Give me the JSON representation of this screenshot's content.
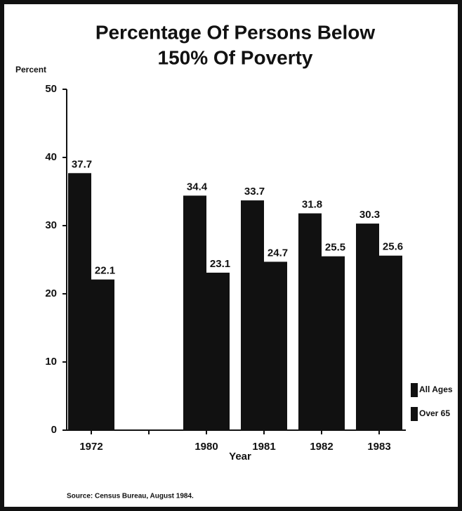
{
  "chart_data": {
    "type": "bar",
    "title": [
      "Percentage Of Persons Below",
      "150% Of Poverty"
    ],
    "y_label": "Percent",
    "x_label": "Year",
    "source": "Source: Census Bureau, August 1984.",
    "categories": [
      "1972",
      null,
      "1980",
      "1981",
      "1982",
      "1983"
    ],
    "series": [
      {
        "name": "All Ages",
        "color": "#111111",
        "values": [
          37.7,
          null,
          34.4,
          33.7,
          31.8,
          30.3
        ]
      },
      {
        "name": "Over 65",
        "color": "#111111",
        "values": [
          22.1,
          null,
          23.1,
          24.7,
          25.5,
          25.6
        ]
      }
    ],
    "ylim": [
      0,
      50
    ],
    "yticks": [
      0,
      10,
      20,
      30,
      40,
      50
    ],
    "grid": false,
    "legend": "bottom-right"
  }
}
